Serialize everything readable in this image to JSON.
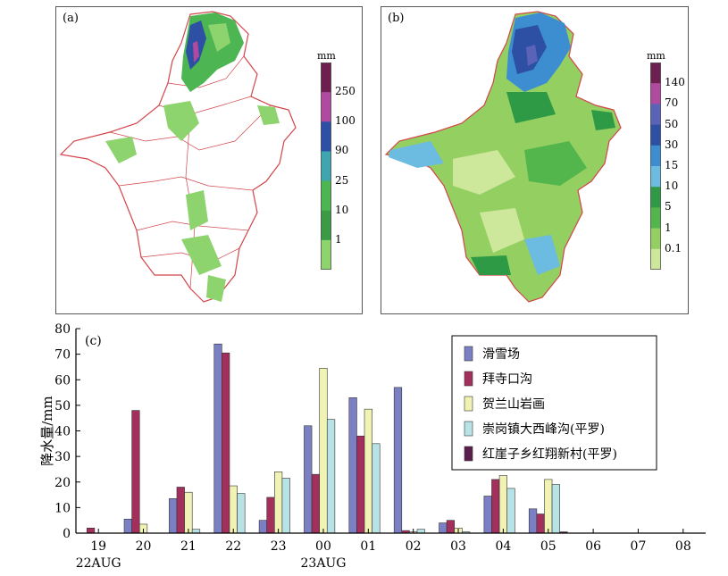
{
  "panels": {
    "a": {
      "label": "(a)",
      "colorbar_unit": "mm",
      "colorbar_ticks": [
        "250",
        "100",
        "90",
        "25",
        "10",
        "1"
      ],
      "colorbar_colors": [
        "#6d1f4f",
        "#b04aa0",
        "#2d4fa4",
        "#3fa6b0",
        "#4db653",
        "#3b9a46",
        "#8dd36e"
      ]
    },
    "b": {
      "label": "(b)",
      "colorbar_unit": "mm",
      "colorbar_ticks": [
        "140",
        "70",
        "50",
        "30",
        "15",
        "10",
        "5",
        "1",
        "0.1"
      ],
      "colorbar_colors": [
        "#6d1f4f",
        "#b04aa0",
        "#5a63b8",
        "#2d4fa4",
        "#3c8ed0",
        "#6cbbe0",
        "#2f9a45",
        "#52b64d",
        "#94cf62",
        "#cde89a"
      ]
    }
  },
  "chart_data": {
    "label": "(c)",
    "type": "bar",
    "ylabel": "降水量/mm",
    "ylim": [
      0,
      80
    ],
    "yticks": [
      0,
      10,
      20,
      30,
      40,
      50,
      60,
      70,
      80
    ],
    "categories": [
      "19",
      "20",
      "21",
      "22",
      "23",
      "00",
      "01",
      "02",
      "03",
      "04",
      "05",
      "06",
      "07",
      "08"
    ],
    "date_labels": [
      {
        "text": "22AUG",
        "at": "19"
      },
      {
        "text": "23AUG",
        "at": "00"
      }
    ],
    "legend_position": "top-right",
    "series": [
      {
        "name": "滑雪场",
        "color": "#7b7fc4",
        "values": [
          0,
          5.5,
          13.5,
          74,
          5,
          42,
          53,
          57,
          4,
          14.5,
          9.5,
          0,
          0,
          0
        ]
      },
      {
        "name": "拜寺口沟",
        "color": "#a3305c",
        "values": [
          2,
          48,
          18,
          70.5,
          14,
          23,
          38,
          1,
          5,
          21,
          7.5,
          0,
          0,
          0
        ]
      },
      {
        "name": "贺兰山岩画",
        "color": "#f1f3b4",
        "values": [
          0,
          3.5,
          16,
          18.5,
          24,
          64.5,
          48.5,
          0.5,
          2,
          22.5,
          21,
          0,
          0,
          0
        ]
      },
      {
        "name": "崇岗镇大西峰沟(平罗)",
        "color": "#b8e3e6",
        "values": [
          0,
          0,
          1.5,
          15.5,
          21.5,
          44.5,
          35,
          1.5,
          0.5,
          17.5,
          19,
          0,
          0,
          0
        ]
      },
      {
        "name": "红崖子乡红翔新村(平罗)",
        "color": "#5b1f4d",
        "values": [
          0,
          0,
          0,
          0,
          0,
          0,
          0,
          0,
          0,
          0,
          0.5,
          0,
          0,
          0
        ]
      }
    ]
  }
}
